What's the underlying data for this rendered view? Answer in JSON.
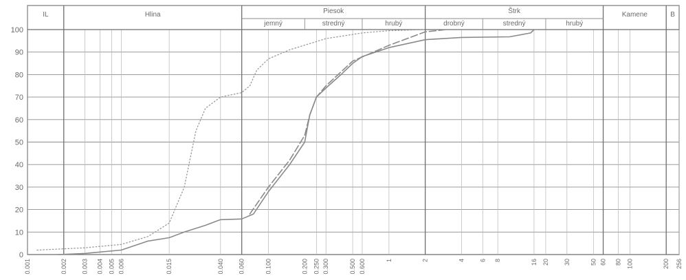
{
  "chart_data": {
    "type": "line",
    "title": "",
    "xlabel": "",
    "ylabel": "",
    "x_scale": "log",
    "xlim": [
      0.001,
      256
    ],
    "ylim": [
      0,
      100
    ],
    "y_ticks": [
      0,
      10,
      20,
      30,
      40,
      50,
      60,
      70,
      80,
      90,
      100
    ],
    "x_ticks": [
      {
        "v": 0.001,
        "label": "0.001"
      },
      {
        "v": 0.002,
        "label": "0.002"
      },
      {
        "v": 0.003,
        "label": "0.003"
      },
      {
        "v": 0.004,
        "label": "0.004"
      },
      {
        "v": 0.005,
        "label": "0.005"
      },
      {
        "v": 0.006,
        "label": "0.006"
      },
      {
        "v": 0.015,
        "label": "0.015"
      },
      {
        "v": 0.04,
        "label": "0.040"
      },
      {
        "v": 0.06,
        "label": "0.060"
      },
      {
        "v": 0.1,
        "label": "0.100"
      },
      {
        "v": 0.2,
        "label": "0.200"
      },
      {
        "v": 0.25,
        "label": "0.250"
      },
      {
        "v": 0.3,
        "label": "0.300"
      },
      {
        "v": 0.5,
        "label": "0.500"
      },
      {
        "v": 0.6,
        "label": "0.600"
      },
      {
        "v": 1,
        "label": "1"
      },
      {
        "v": 2,
        "label": "2"
      },
      {
        "v": 4,
        "label": "4"
      },
      {
        "v": 6,
        "label": "6"
      },
      {
        "v": 8,
        "label": "8"
      },
      {
        "v": 16,
        "label": "16"
      },
      {
        "v": 20,
        "label": "20"
      },
      {
        "v": 30,
        "label": "30"
      },
      {
        "v": 50,
        "label": "50"
      },
      {
        "v": 60,
        "label": "60"
      },
      {
        "v": 80,
        "label": "80"
      },
      {
        "v": 100,
        "label": "100"
      },
      {
        "v": 200,
        "label": "200"
      },
      {
        "v": 256,
        "label": "256"
      }
    ],
    "major_vlines": [
      0.002,
      0.06,
      2,
      60,
      200
    ],
    "minor_vlines": [
      0.003,
      0.004,
      0.005,
      0.006,
      0.015,
      0.04,
      0.1,
      0.25,
      0.3,
      0.5,
      0.6,
      1,
      4,
      6,
      8,
      16,
      20,
      30,
      50,
      80,
      100,
      256
    ],
    "header": {
      "top_cells": [
        {
          "label": "IL",
          "from": 0.001,
          "to": 0.002
        },
        {
          "label": "Hlina",
          "from": 0.002,
          "to": 0.06
        },
        {
          "label": "Piesok",
          "from": 0.06,
          "to": 2
        },
        {
          "label": "Štrk",
          "from": 2,
          "to": 60
        },
        {
          "label": "Kamene",
          "from": 60,
          "to": 200
        },
        {
          "label": "B",
          "from": 200,
          "to": 256
        }
      ],
      "sub_cells": [
        {
          "label": "jemný",
          "from": 0.06,
          "to": 0.2
        },
        {
          "label": "stredný",
          "from": 0.2,
          "to": 0.6
        },
        {
          "label": "hrubý",
          "from": 0.6,
          "to": 2
        },
        {
          "label": "drobný",
          "from": 2,
          "to": 6
        },
        {
          "label": "stredný",
          "from": 6,
          "to": 20
        },
        {
          "label": "hrubý",
          "from": 20,
          "to": 60
        }
      ]
    },
    "series": [
      {
        "style": "solid",
        "color": "#8a8a8a",
        "points": [
          [
            0.0018,
            0
          ],
          [
            0.003,
            0.5
          ],
          [
            0.006,
            2
          ],
          [
            0.01,
            6
          ],
          [
            0.015,
            7.5
          ],
          [
            0.02,
            10
          ],
          [
            0.03,
            13
          ],
          [
            0.04,
            15.5
          ],
          [
            0.06,
            15.8
          ],
          [
            0.075,
            18
          ],
          [
            0.1,
            28
          ],
          [
            0.15,
            40
          ],
          [
            0.2,
            50
          ],
          [
            0.22,
            62
          ],
          [
            0.25,
            70
          ],
          [
            0.3,
            74
          ],
          [
            0.4,
            80
          ],
          [
            0.5,
            85
          ],
          [
            0.6,
            88
          ],
          [
            1,
            92
          ],
          [
            2,
            95.5
          ],
          [
            4,
            96.5
          ],
          [
            10,
            96.8
          ],
          [
            15,
            98.5
          ],
          [
            16,
            100
          ]
        ]
      },
      {
        "style": "dashed",
        "color": "#8a8a8a",
        "points": [
          [
            0.07,
            18
          ],
          [
            0.1,
            30
          ],
          [
            0.15,
            42
          ],
          [
            0.2,
            53
          ],
          [
            0.22,
            62
          ],
          [
            0.25,
            70
          ],
          [
            0.3,
            75
          ],
          [
            0.5,
            86
          ],
          [
            1,
            93
          ],
          [
            2,
            99
          ],
          [
            3,
            100
          ]
        ]
      },
      {
        "style": "dotted",
        "color": "#9a9a9a",
        "points": [
          [
            0.0012,
            2
          ],
          [
            0.003,
            3
          ],
          [
            0.006,
            4.5
          ],
          [
            0.01,
            8
          ],
          [
            0.015,
            14
          ],
          [
            0.02,
            30
          ],
          [
            0.025,
            55
          ],
          [
            0.03,
            65
          ],
          [
            0.04,
            70
          ],
          [
            0.06,
            72
          ],
          [
            0.07,
            75
          ],
          [
            0.08,
            82
          ],
          [
            0.1,
            87
          ],
          [
            0.15,
            91
          ],
          [
            0.3,
            96
          ],
          [
            0.6,
            98.5
          ],
          [
            1,
            99.5
          ],
          [
            2,
            100
          ]
        ]
      }
    ]
  }
}
